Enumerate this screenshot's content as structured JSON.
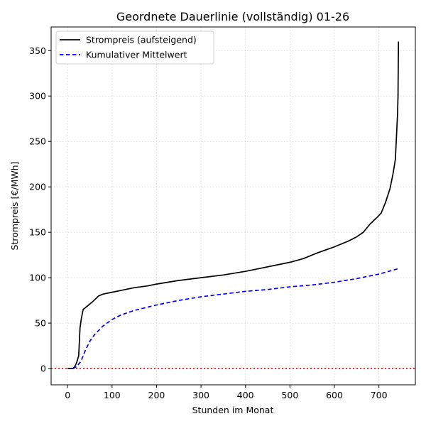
{
  "chart_data": {
    "type": "line",
    "title": "Geordnete Dauerlinie (vollständig) 01-26",
    "xlabel": "Stunden im Monat",
    "ylabel": "Strompreis [€/MWh]",
    "xlim": [
      -37,
      782
    ],
    "ylim": [
      -17.9,
      376
    ],
    "xticks": [
      0,
      100,
      200,
      300,
      400,
      500,
      600,
      700
    ],
    "yticks": [
      0,
      50,
      100,
      150,
      200,
      250,
      300,
      350
    ],
    "grid": true,
    "legend_position": "top-left",
    "reference_line": {
      "y": 0,
      "color": "#ff0000",
      "style": "dotted"
    },
    "series": [
      {
        "name": "Strompreis (aufsteigend)",
        "color": "#000000",
        "style": "solid",
        "points": [
          [
            0,
            0
          ],
          [
            12,
            0
          ],
          [
            16,
            2
          ],
          [
            20,
            6
          ],
          [
            25,
            14
          ],
          [
            28,
            45
          ],
          [
            31,
            55
          ],
          [
            35,
            65
          ],
          [
            45,
            69
          ],
          [
            55,
            73
          ],
          [
            70,
            80
          ],
          [
            80,
            82
          ],
          [
            100,
            84
          ],
          [
            120,
            86
          ],
          [
            150,
            89
          ],
          [
            180,
            91
          ],
          [
            200,
            93
          ],
          [
            250,
            97
          ],
          [
            300,
            100
          ],
          [
            350,
            103
          ],
          [
            400,
            107
          ],
          [
            450,
            112
          ],
          [
            500,
            117
          ],
          [
            530,
            121
          ],
          [
            560,
            127
          ],
          [
            600,
            134
          ],
          [
            630,
            140
          ],
          [
            650,
            145
          ],
          [
            665,
            150
          ],
          [
            680,
            159
          ],
          [
            695,
            166
          ],
          [
            705,
            171
          ],
          [
            715,
            183
          ],
          [
            725,
            198
          ],
          [
            732,
            215
          ],
          [
            737,
            230
          ],
          [
            740,
            260
          ],
          [
            742,
            280
          ],
          [
            743,
            300
          ],
          [
            744,
            360
          ]
        ]
      },
      {
        "name": "Kumulativer Mittelwert",
        "color": "#0000ff",
        "style": "dashed",
        "points": [
          [
            12,
            0
          ],
          [
            20,
            2
          ],
          [
            30,
            8
          ],
          [
            40,
            20
          ],
          [
            50,
            30
          ],
          [
            60,
            37
          ],
          [
            70,
            42
          ],
          [
            80,
            47
          ],
          [
            100,
            54
          ],
          [
            120,
            59
          ],
          [
            150,
            64
          ],
          [
            200,
            70
          ],
          [
            250,
            75
          ],
          [
            300,
            79
          ],
          [
            350,
            82
          ],
          [
            400,
            85
          ],
          [
            450,
            87
          ],
          [
            500,
            90
          ],
          [
            550,
            92
          ],
          [
            600,
            95
          ],
          [
            650,
            99
          ],
          [
            700,
            104
          ],
          [
            744,
            110
          ]
        ]
      }
    ]
  }
}
